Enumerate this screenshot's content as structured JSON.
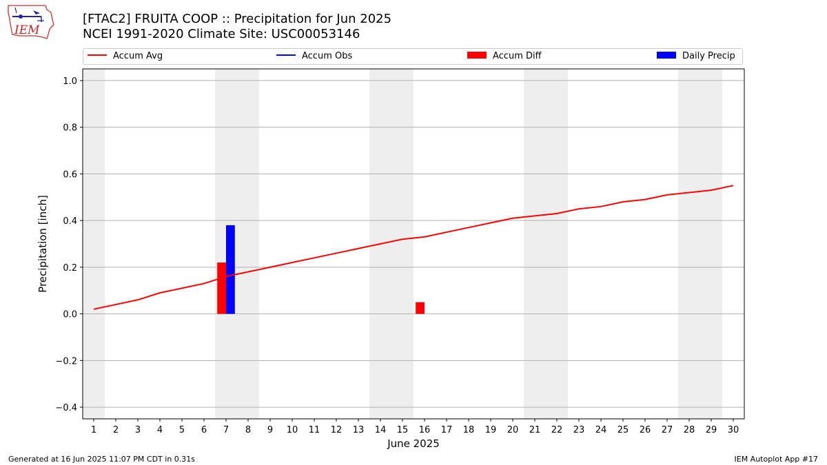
{
  "logo": {
    "text": "IEM"
  },
  "header": {
    "title_line1": "[FTAC2] FRUITA COOP :: Precipitation for Jun 2025",
    "title_line2": "NCEI 1991-2020 Climate Site: USC00053146"
  },
  "footer": {
    "generated": "Generated at 16 Jun 2025 11:07 PM CDT in 0.31s",
    "app": "IEM Autoplot App #17"
  },
  "chart_data": {
    "type": "bar",
    "xlabel": "June 2025",
    "ylabel": "Precipitation [inch]",
    "xlim": [
      0.5,
      30.5
    ],
    "ylim": [
      -0.45,
      1.05
    ],
    "yticks": [
      -0.4,
      -0.2,
      0.0,
      0.2,
      0.4,
      0.6,
      0.8,
      1.0
    ],
    "ytick_labels": [
      "−0.4",
      "−0.2",
      "0.0",
      "0.2",
      "0.4",
      "0.6",
      "0.8",
      "1.0"
    ],
    "xticks": [
      1,
      2,
      3,
      4,
      5,
      6,
      7,
      8,
      9,
      10,
      11,
      12,
      13,
      14,
      15,
      16,
      17,
      18,
      19,
      20,
      21,
      22,
      23,
      24,
      25,
      26,
      27,
      28,
      29,
      30
    ],
    "grid": "horizontal",
    "legend_position": "top",
    "weekend_shading": [
      [
        0.5,
        1.5
      ],
      [
        6.5,
        8.5
      ],
      [
        13.5,
        15.5
      ],
      [
        20.5,
        22.5
      ],
      [
        27.5,
        29.5
      ]
    ],
    "series": [
      {
        "name": "Accum Avg",
        "kind": "line",
        "color": "#ff0000",
        "x": [
          1,
          2,
          3,
          4,
          5,
          6,
          7,
          8,
          9,
          10,
          11,
          12,
          13,
          14,
          15,
          16,
          17,
          18,
          19,
          20,
          21,
          22,
          23,
          24,
          25,
          26,
          27,
          28,
          29,
          30
        ],
        "values": [
          0.02,
          0.04,
          0.06,
          0.09,
          0.11,
          0.13,
          0.16,
          0.18,
          0.2,
          0.22,
          0.24,
          0.26,
          0.28,
          0.3,
          0.32,
          0.33,
          0.35,
          0.37,
          0.39,
          0.41,
          0.42,
          0.43,
          0.45,
          0.46,
          0.48,
          0.49,
          0.51,
          0.52,
          0.53,
          0.55
        ]
      },
      {
        "name": "Accum Obs",
        "kind": "line",
        "color": "#0000ff",
        "x": [],
        "values": []
      },
      {
        "name": "Accum Diff",
        "kind": "bar",
        "color": "#ff0000",
        "x": [
          7,
          16
        ],
        "values": [
          0.22,
          0.05
        ]
      },
      {
        "name": "Daily Precip",
        "kind": "bar",
        "color": "#0000ff",
        "x": [
          7
        ],
        "values": [
          0.38
        ]
      }
    ]
  }
}
